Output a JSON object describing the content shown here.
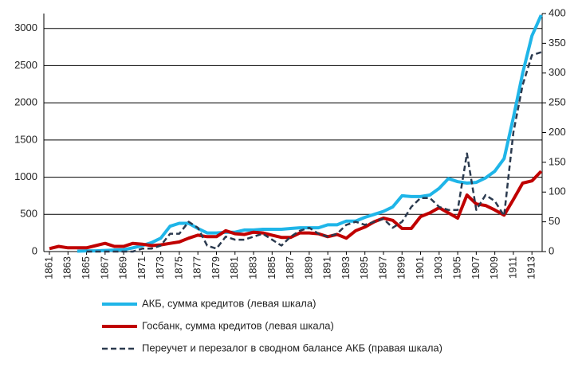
{
  "chart_data": {
    "type": "line",
    "x": [
      1861,
      1862,
      1863,
      1864,
      1865,
      1866,
      1867,
      1868,
      1869,
      1870,
      1871,
      1872,
      1873,
      1874,
      1875,
      1876,
      1877,
      1878,
      1879,
      1880,
      1881,
      1882,
      1883,
      1884,
      1885,
      1886,
      1887,
      1888,
      1889,
      1890,
      1891,
      1892,
      1893,
      1894,
      1895,
      1896,
      1897,
      1898,
      1899,
      1900,
      1901,
      1902,
      1903,
      1904,
      1905,
      1906,
      1907,
      1908,
      1909,
      1910,
      1911,
      1912,
      1913,
      1914
    ],
    "xlim": [
      1860.4,
      1914.1
    ],
    "xticks": [
      1861,
      1863,
      1865,
      1867,
      1869,
      1871,
      1873,
      1875,
      1877,
      1879,
      1881,
      1883,
      1885,
      1887,
      1889,
      1891,
      1893,
      1895,
      1897,
      1899,
      1901,
      1903,
      1905,
      1907,
      1909,
      1911,
      1913
    ],
    "ylim": [
      0,
      3200
    ],
    "yticks": [
      0,
      500,
      1000,
      1500,
      2000,
      2500,
      3000
    ],
    "y2lim": [
      0,
      400
    ],
    "y2ticks": [
      0,
      50,
      100,
      150,
      200,
      250,
      300,
      350,
      400
    ],
    "grid": true,
    "series": [
      {
        "name": "АКБ, сумма кредитов (левая шкала)",
        "color": "#1fb5e8",
        "dash": false,
        "values": [
          null,
          null,
          null,
          5,
          10,
          10,
          15,
          20,
          25,
          50,
          80,
          120,
          180,
          340,
          380,
          380,
          310,
          250,
          250,
          260,
          260,
          290,
          290,
          300,
          300,
          300,
          310,
          320,
          320,
          320,
          360,
          360,
          410,
          410,
          460,
          500,
          540,
          600,
          750,
          740,
          740,
          760,
          850,
          980,
          940,
          920,
          930,
          990,
          1080,
          1250,
          1800,
          2400,
          2900,
          3180
        ]
      },
      {
        "name": "Госбанк, сумма кредитов (левая шкала)",
        "color": "#c00000",
        "dash": false,
        "values": [
          40,
          70,
          50,
          50,
          50,
          80,
          110,
          70,
          70,
          110,
          100,
          80,
          90,
          110,
          130,
          180,
          220,
          200,
          200,
          280,
          240,
          230,
          260,
          250,
          220,
          190,
          190,
          250,
          250,
          240,
          200,
          230,
          180,
          280,
          330,
          400,
          450,
          420,
          310,
          310,
          470,
          520,
          590,
          520,
          450,
          760,
          640,
          620,
          560,
          490,
          700,
          920,
          950,
          1080
        ]
      },
      {
        "name": "Переучет и перезалог в сводном балансе АКБ (правая шкала)",
        "color": "#2b3a4f",
        "dash": true,
        "axis": "y2",
        "values": [
          null,
          null,
          null,
          null,
          0,
          0,
          0,
          0,
          0,
          0,
          5,
          5,
          10,
          30,
          30,
          50,
          40,
          10,
          5,
          25,
          20,
          20,
          25,
          30,
          20,
          10,
          25,
          35,
          40,
          30,
          25,
          30,
          45,
          50,
          45,
          50,
          55,
          40,
          50,
          75,
          90,
          90,
          75,
          70,
          70,
          165,
          70,
          95,
          85,
          60,
          200,
          280,
          330,
          335
        ]
      }
    ]
  }
}
